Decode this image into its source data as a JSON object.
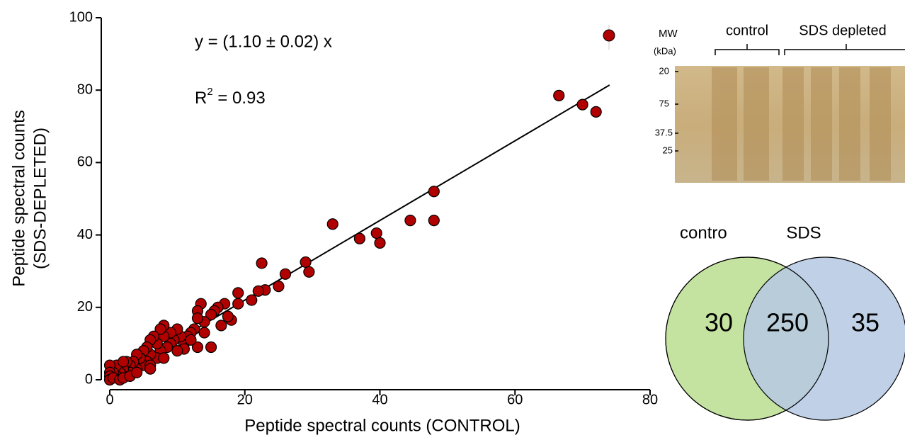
{
  "chart_data": [
    {
      "type": "scatter",
      "x_label": "Peptide spectral counts (CONTROL)",
      "y_label": [
        "Peptide spectral counts",
        "(SDS-DEPLETED)"
      ],
      "annotations": [
        "y = (1.10 ± 0.02) x",
        [
          "R",
          "2",
          " = 0.93"
        ]
      ],
      "fit": {
        "slope": 1.1,
        "x_end": 74
      },
      "color": "#b00000",
      "x": [
        66.5,
        70,
        72,
        48,
        48,
        44.5,
        39.5,
        40,
        37,
        33,
        29,
        29.5,
        26,
        25,
        23,
        22.5,
        22,
        21,
        19,
        19,
        18,
        17.5,
        17,
        16.5,
        16,
        15,
        15.5,
        15,
        14,
        13.5,
        13,
        13,
        13,
        12.5,
        12,
        11.5,
        11,
        11,
        10.5,
        10,
        9.5,
        9,
        9,
        8.5,
        8,
        8,
        7.5,
        7.5,
        7,
        7,
        6.5,
        6,
        6,
        5.5,
        5.5,
        5,
        5,
        4.5,
        4,
        4,
        3.5,
        3,
        3,
        2.5,
        2,
        2,
        1.5,
        1,
        1,
        0.5,
        0,
        0,
        0,
        0,
        0.5,
        1.5,
        2,
        3,
        4,
        6,
        8,
        10,
        12,
        14,
        6,
        2
      ],
      "y": [
        78.5,
        76,
        74,
        52,
        44,
        44,
        40.5,
        37.8,
        39,
        43,
        32.5,
        29.8,
        29.2,
        25.8,
        24.8,
        32.2,
        24.5,
        22,
        24,
        21,
        16.5,
        17.5,
        21,
        15,
        20,
        9,
        19,
        18,
        16,
        21,
        19,
        17,
        9,
        14,
        13,
        12,
        10,
        8.5,
        12,
        14,
        11,
        10,
        13,
        9,
        12,
        15,
        14,
        8,
        10,
        6,
        12,
        11,
        7,
        9,
        5,
        8,
        4,
        6,
        7,
        3,
        5,
        4,
        2,
        5,
        3,
        1,
        2,
        4,
        1,
        2,
        4,
        2,
        1,
        0,
        0.5,
        0,
        0.5,
        1,
        2,
        4,
        6,
        8,
        11,
        13,
        3,
        5
      ],
      "xlim": [
        0,
        80
      ],
      "ylim": [
        0,
        100
      ],
      "xticks": [
        0,
        20,
        40,
        60,
        80
      ],
      "yticks": [
        0,
        20,
        40,
        60,
        80,
        100
      ]
    },
    {
      "type": "venn",
      "sets": [
        "contro",
        "SDS"
      ],
      "colors": [
        "#c5e3a0",
        "#b5c9e3"
      ],
      "values": [
        30,
        250,
        35
      ]
    }
  ],
  "gel": {
    "mw_label": "MW",
    "unit_label": "(kDa)",
    "markers": [
      "20",
      "75",
      "37.5",
      "25"
    ],
    "lanes": [
      "control",
      "SDS depleted"
    ]
  }
}
